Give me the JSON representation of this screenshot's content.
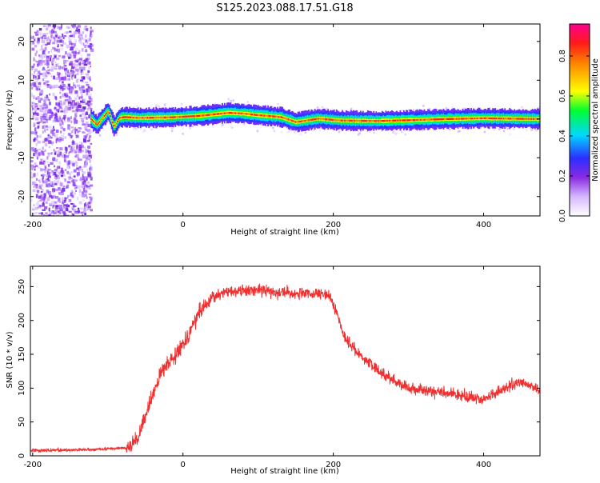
{
  "title": "S125.2023.088.17.51.G18",
  "colors": {
    "snr_line": "#f03030",
    "axis": "#000000",
    "background": "#ffffff"
  },
  "chart_data": [
    {
      "type": "heatmap",
      "xlabel": "Height of straight line (km)",
      "ylabel": "Frequency (Hz)",
      "xlim": [
        -203,
        475
      ],
      "ylim": [
        -25,
        24.5
      ],
      "xticks": [
        -200,
        0,
        200,
        400
      ],
      "yticks": [
        -20,
        -10,
        0,
        10,
        20
      ],
      "colorbar": {
        "label": "Normalized spectral amplitude",
        "range": [
          0,
          0.96
        ],
        "ticks": [
          0.0,
          0.2,
          0.4,
          0.6,
          0.8
        ]
      },
      "noise_region_x": [
        -203,
        -123
      ],
      "ridge_profile": {
        "x": [
          -123,
          -115,
          -100,
          -92,
          -85,
          -78,
          -60,
          -20,
          20,
          60,
          80,
          100,
          130,
          150,
          180,
          210,
          260,
          300,
          350,
          400,
          475
        ],
        "freq": [
          0,
          -1.5,
          2,
          -2,
          0.3,
          0.5,
          0.3,
          0.4,
          0.8,
          1.6,
          1.4,
          1.0,
          0.5,
          -0.8,
          0.1,
          -0.4,
          -0.5,
          -0.3,
          0.0,
          0.2,
          0.0
        ]
      }
    },
    {
      "type": "line",
      "xlabel": "Height of straight line (km)",
      "ylabel": "SNR (10 * v/v)",
      "xlim": [
        -203,
        475
      ],
      "ylim": [
        0,
        280
      ],
      "xticks": [
        -200,
        0,
        200,
        400
      ],
      "yticks": [
        0,
        50,
        100,
        150,
        200,
        250
      ],
      "series": [
        {
          "x": [
            -203,
            -120,
            -75,
            -60,
            -45,
            -30,
            -15,
            0,
            10,
            20,
            40,
            60,
            100,
            150,
            195,
            205,
            215,
            230,
            260,
            300,
            350,
            400,
            420,
            450,
            475
          ],
          "values": [
            8,
            9,
            12,
            25,
            75,
            120,
            145,
            165,
            185,
            210,
            235,
            243,
            245,
            240,
            237,
            210,
            175,
            155,
            125,
            100,
            93,
            83,
            95,
            110,
            95
          ]
        }
      ]
    }
  ]
}
